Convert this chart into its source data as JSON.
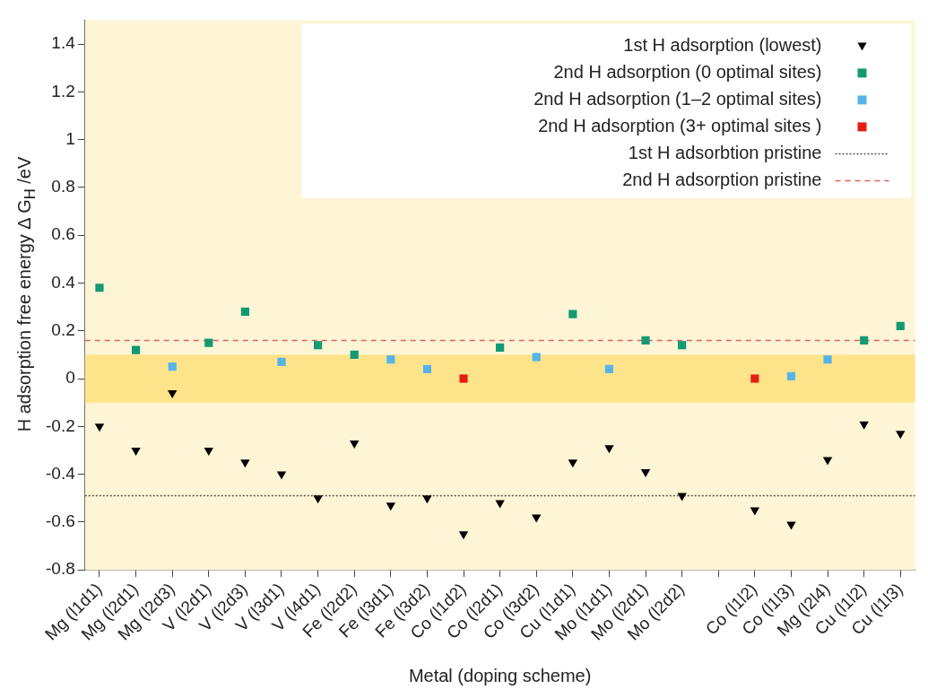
{
  "chart_data": {
    "type": "scatter",
    "xlabel": "Metal (doping scheme)",
    "ylabel": "H adsorption free energy Δ G$_{H}$ /eV",
    "categories": [
      "Mg (l1d1)",
      "Mg (l2d1)",
      "Mg (l2d3)",
      "V (l2d1)",
      "V (l2d3)",
      "V (l3d1)",
      "V (l4d1)",
      "Fe (l2d2)",
      "Fe (l3d1)",
      "Fe (l3d2)",
      "Co (l1d2)",
      "Co (l2d1)",
      "Co (l3d2)",
      "Cu (l1d1)",
      "Mo (l1d1)",
      "Mo (l2d1)",
      "Mo (l2d2)",
      null,
      "Co (l1l2)",
      "Co (l1l3)",
      "Mg (l2l4)",
      "Cu (l1l2)",
      "Cu (l1l3)"
    ],
    "series": [
      {
        "name": "1st H adsorption (lowest)",
        "color": "#000000",
        "marker": "triangle",
        "values": [
          -0.2,
          -0.3,
          -0.06,
          -0.3,
          -0.35,
          -0.4,
          -0.5,
          -0.27,
          -0.53,
          -0.5,
          -0.65,
          -0.52,
          -0.58,
          -0.35,
          -0.29,
          -0.39,
          -0.49,
          null,
          -0.55,
          -0.61,
          -0.34,
          -0.19,
          -0.23
        ]
      },
      {
        "name": "2nd H adsorption (0 optimal sites)",
        "color": "#139a72",
        "marker": "square",
        "values": [
          0.38,
          0.12,
          null,
          0.15,
          0.28,
          null,
          0.14,
          0.1,
          null,
          null,
          null,
          0.13,
          null,
          0.27,
          null,
          0.16,
          0.14,
          null,
          null,
          null,
          null,
          0.16,
          0.22
        ]
      },
      {
        "name": "2nd H adsorption (1–2 optimal sites)",
        "color": "#56b4e9",
        "marker": "square",
        "values": [
          null,
          null,
          0.05,
          null,
          null,
          0.07,
          null,
          null,
          0.08,
          0.04,
          null,
          null,
          0.09,
          null,
          0.04,
          null,
          null,
          null,
          null,
          0.01,
          0.08,
          null,
          null
        ]
      },
      {
        "name": "2nd H adsorption (3+ optimal sites )",
        "color": "#e51e10",
        "marker": "square",
        "values": [
          null,
          null,
          null,
          null,
          null,
          null,
          null,
          null,
          null,
          null,
          0,
          null,
          null,
          null,
          null,
          null,
          null,
          null,
          0,
          null,
          null,
          null,
          null
        ]
      }
    ],
    "ref_lines": [
      {
        "axis": "y",
        "value": -0.49,
        "label": "1st H adsorbtion pristine",
        "color": "#555555",
        "line_style": "dotted"
      },
      {
        "axis": "y",
        "value": 0.16,
        "label": "2nd H adsorption pristine",
        "color": "#e06060",
        "line_style": "dashed"
      }
    ],
    "bands": [
      {
        "axis": "y",
        "from": -0.1,
        "to": 0.1,
        "color": "#fde48a"
      }
    ],
    "ylim": [
      -0.8,
      1.5
    ],
    "yticks": [
      -0.8,
      -0.6,
      -0.4,
      -0.2,
      0,
      0.2,
      0.4,
      0.6,
      0.8,
      1,
      1.2,
      1.4
    ],
    "grid": false,
    "legend": "top right"
  }
}
